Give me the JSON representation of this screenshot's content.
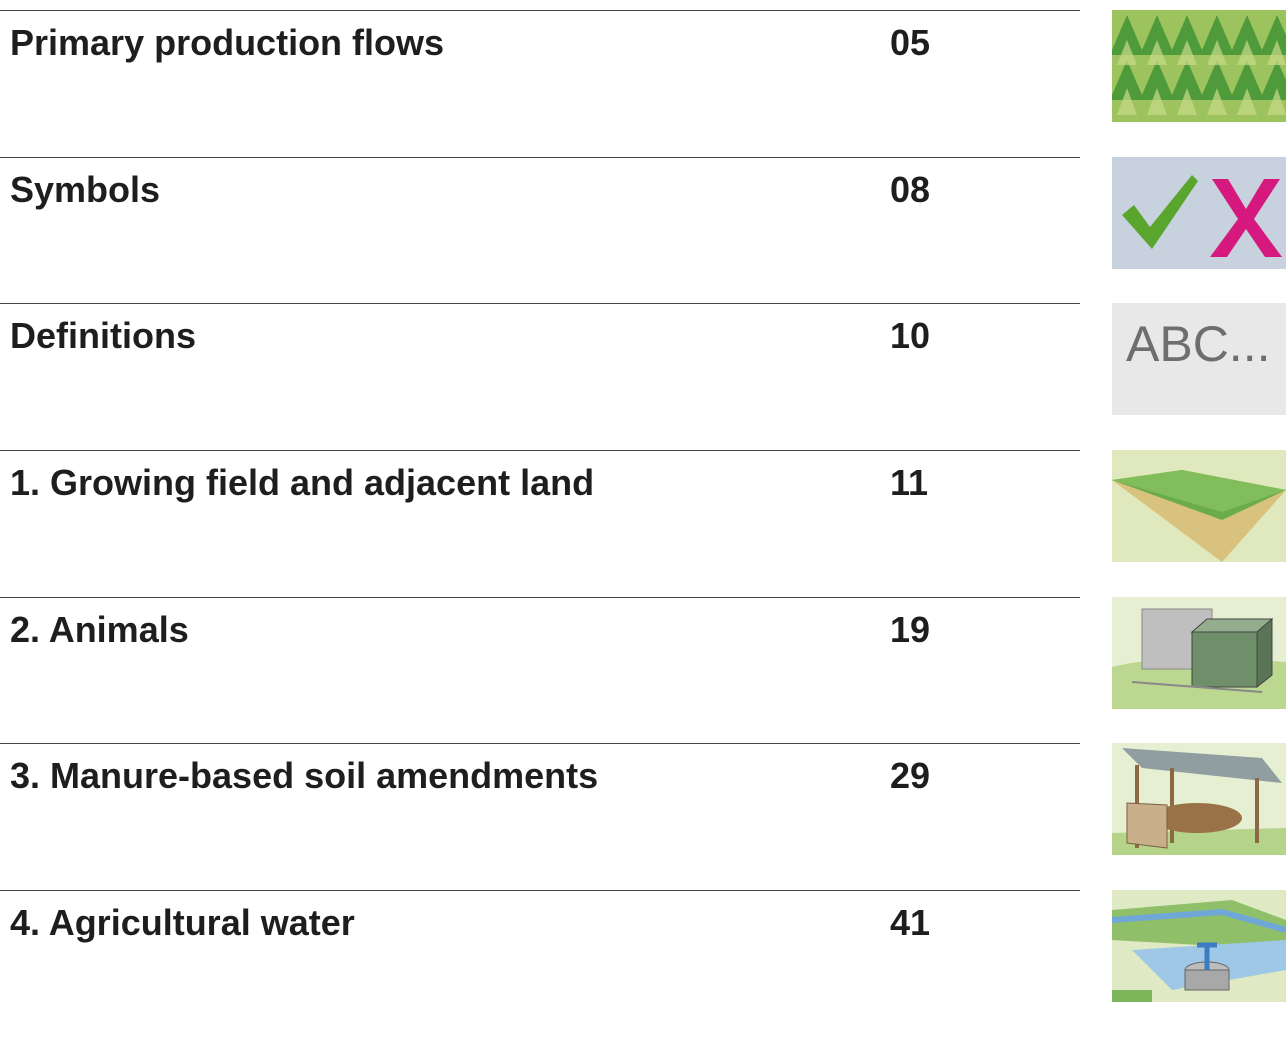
{
  "toc": [
    {
      "title": "Primary production flows",
      "page": "05"
    },
    {
      "title": "Symbols",
      "page": "08"
    },
    {
      "title": "Definitions",
      "page": "10",
      "thumb_text": "ABC..."
    },
    {
      "title": "1. Growing field and adjacent land",
      "page": "11"
    },
    {
      "title": "2. Animals",
      "page": "19"
    },
    {
      "title": "3. Manure-based soil amendments",
      "page": "29"
    },
    {
      "title": "4. Agricultural water",
      "page": "41"
    }
  ]
}
